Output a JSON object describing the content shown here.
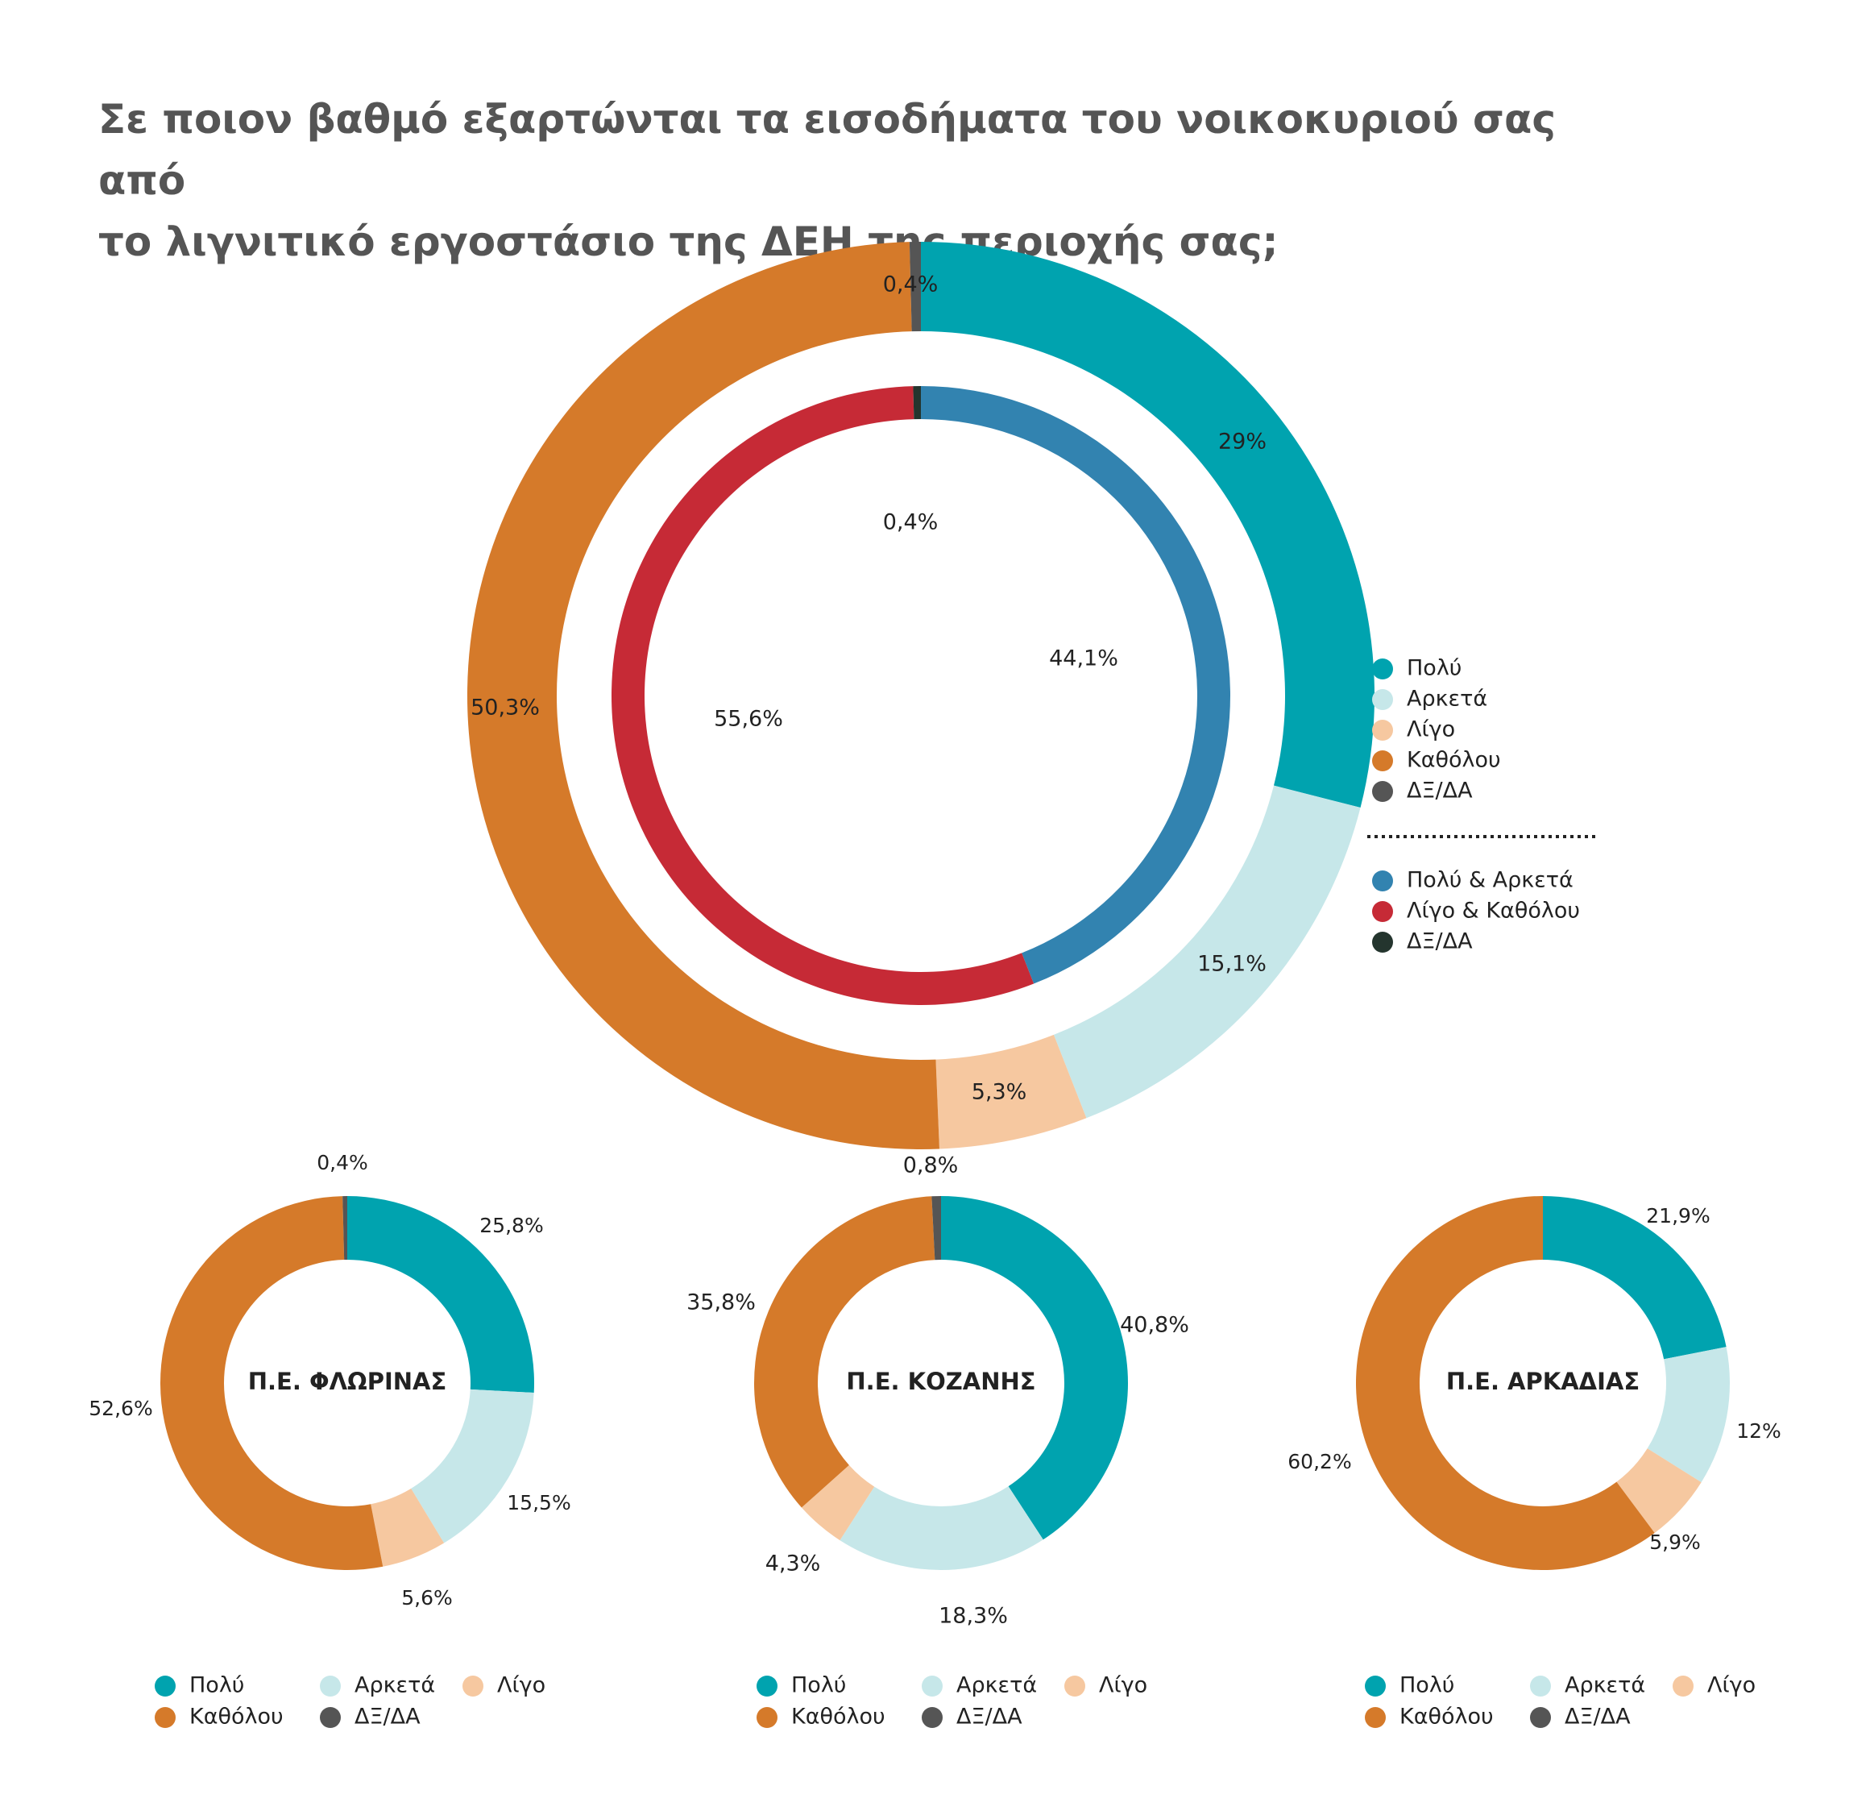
{
  "title": {
    "line1": "Σε ποιον βαθμό εξαρτώνται τα εισοδήματα του νοικοκυριού σας από",
    "line2": "το λιγνιτικό εργοστάσιο της ΔΕΗ της περιοχής σας;"
  },
  "colors": {
    "poly": "#00a3af",
    "arketa": "#c6e7e9",
    "ligo": "#f6c8a0",
    "katholou": "#d57a2a",
    "dxda": "#555555",
    "poly_arketa": "#3283b0",
    "ligo_katholou": "#c62a36",
    "dxda_inner": "#24352e"
  },
  "chart_data": [
    {
      "type": "pie",
      "name": "main-outer",
      "categories": [
        "Πολύ",
        "Αρκετά",
        "Λίγο",
        "Καθόλου",
        "ΔΞ/ΔΑ"
      ],
      "values": [
        29,
        15.1,
        5.3,
        50.3,
        0.4
      ],
      "labels": [
        "29%",
        "15,1%",
        "5,3%",
        "50,3%",
        "0,4%"
      ]
    },
    {
      "type": "pie",
      "name": "main-inner",
      "categories": [
        "Πολύ & Αρκετά",
        "Λίγο & Καθόλου",
        "ΔΞ/ΔΑ"
      ],
      "values": [
        44.1,
        55.6,
        0.4
      ],
      "labels": [
        "44,1%",
        "55,6%",
        "0,4%"
      ]
    },
    {
      "type": "pie",
      "name": "florina",
      "center_label": "Π.Ε. ΦΛΩΡΙΝΑΣ",
      "categories": [
        "Πολύ",
        "Αρκετά",
        "Λίγο",
        "Καθόλου",
        "ΔΞ/ΔΑ"
      ],
      "values": [
        25.8,
        15.5,
        5.6,
        52.6,
        0.4
      ],
      "labels": [
        "25,8%",
        "15,5%",
        "5,6%",
        "52,6%",
        "0,4%"
      ]
    },
    {
      "type": "pie",
      "name": "kozani",
      "center_label": "Π.Ε. ΚΟΖΑΝΗΣ",
      "categories": [
        "Πολύ",
        "Αρκετά",
        "Λίγο",
        "Καθόλου",
        "ΔΞ/ΔΑ"
      ],
      "values": [
        40.8,
        18.3,
        4.3,
        35.8,
        0.8
      ],
      "labels": [
        "40,8%",
        "18,3%",
        "4,3%",
        "35,8%",
        "0,8%"
      ]
    },
    {
      "type": "pie",
      "name": "arkadia",
      "center_label": "Π.Ε. ΑΡΚΑΔΙΑΣ",
      "categories": [
        "Πολύ",
        "Αρκετά",
        "Λίγο",
        "Καθόλου"
      ],
      "values": [
        21.9,
        12,
        5.9,
        60.2
      ],
      "labels": [
        "21,9%",
        "12%",
        "5,9%",
        "60,2%"
      ]
    }
  ],
  "legend_main": {
    "outer": [
      "Πολύ",
      "Αρκετά",
      "Λίγο",
      "Καθόλου",
      "ΔΞ/ΔΑ"
    ],
    "inner": [
      "Πολύ & Αρκετά",
      "Λίγο & Καθόλου",
      "ΔΞ/ΔΑ"
    ]
  },
  "legend_small": [
    "Πολύ",
    "Αρκετά",
    "Λίγο",
    "Καθόλου",
    "ΔΞ/ΔΑ"
  ]
}
